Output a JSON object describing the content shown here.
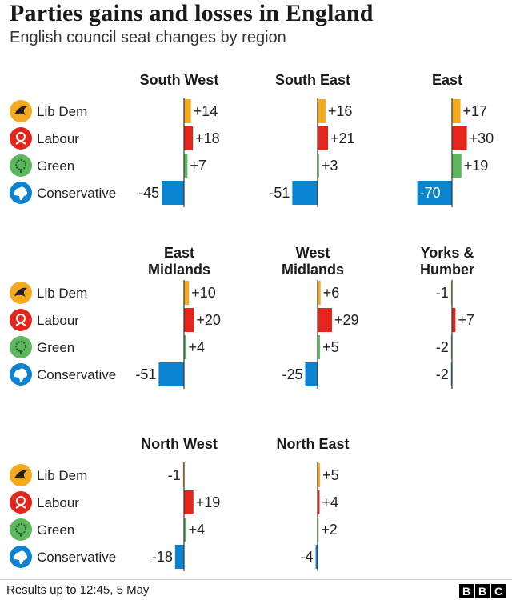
{
  "title": "Parties gains and losses in England",
  "subtitle": "English council seat changes by region",
  "footer": "Results up to 12:45,  5 May",
  "brand": [
    "B",
    "B",
    "C"
  ],
  "chart_data": {
    "type": "bar",
    "orientation": "horizontal",
    "parties": [
      {
        "name": "Lib Dem",
        "color": "#f5a91e",
        "icon": "lib-dem-bird-icon"
      },
      {
        "name": "Labour",
        "color": "#e4251c",
        "icon": "labour-rose-icon"
      },
      {
        "name": "Green",
        "color": "#5cb85c",
        "icon": "green-tree-icon"
      },
      {
        "name": "Conservative",
        "color": "#0a84d0",
        "icon": "conservative-tree-icon"
      }
    ],
    "panels": [
      {
        "region": "South West",
        "values": [
          14,
          18,
          7,
          -45
        ],
        "labels": [
          "+14",
          "+18",
          "+7",
          "-45"
        ]
      },
      {
        "region": "South East",
        "values": [
          16,
          21,
          3,
          -51
        ],
        "labels": [
          "+16",
          "+21",
          "+3",
          "-51"
        ]
      },
      {
        "region": "East",
        "values": [
          17,
          30,
          19,
          -70
        ],
        "labels": [
          "+17",
          "+30",
          "+19",
          "-70"
        ]
      },
      {
        "region": "East Midlands",
        "region_lines": [
          "East",
          "Midlands"
        ],
        "values": [
          10,
          20,
          4,
          -51
        ],
        "labels": [
          "+10",
          "+20",
          "+4",
          "-51"
        ]
      },
      {
        "region": "West Midlands",
        "region_lines": [
          "West",
          "Midlands"
        ],
        "values": [
          6,
          29,
          5,
          -25
        ],
        "labels": [
          "+6",
          "+29",
          "+5",
          "-25"
        ]
      },
      {
        "region": "Yorks & Humber",
        "region_lines": [
          "Yorks &",
          "Humber"
        ],
        "values": [
          -1,
          7,
          -2,
          -2
        ],
        "labels": [
          "-1",
          "+7",
          "-2",
          "-2"
        ]
      },
      {
        "region": "North West",
        "values": [
          -1,
          19,
          4,
          -18
        ],
        "labels": [
          "-1",
          "+19",
          "+4",
          "-18"
        ]
      },
      {
        "region": "North East",
        "values": [
          5,
          4,
          2,
          -4
        ],
        "labels": [
          "+5",
          "+4",
          "+2",
          "-4"
        ]
      }
    ]
  }
}
